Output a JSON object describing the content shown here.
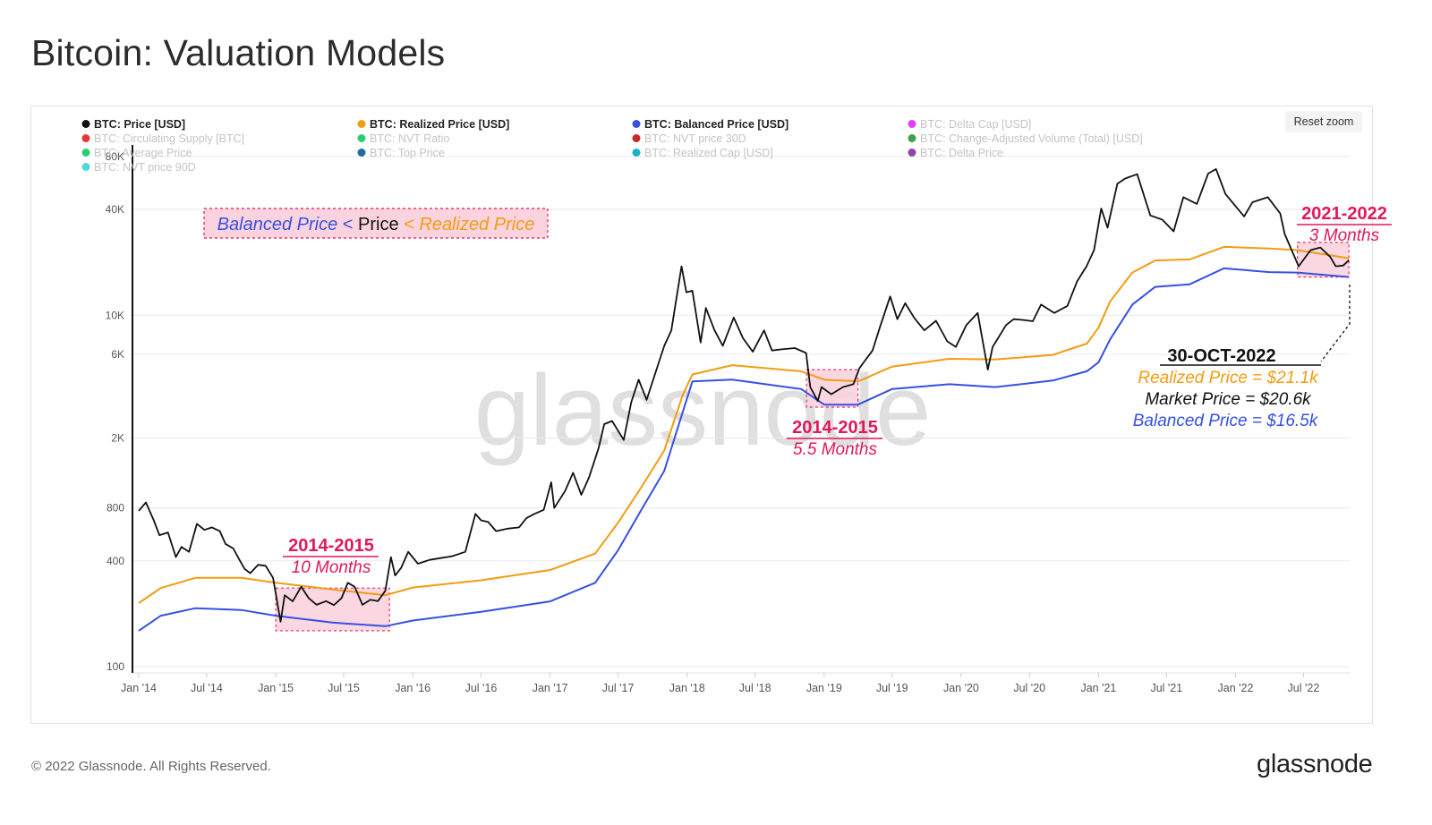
{
  "page": {
    "title": "Bitcoin: Valuation Models",
    "reset_zoom_label": "Reset zoom",
    "footer": "© 2022 Glassnode. All Rights Reserved.",
    "brand": "glassnode",
    "watermark": "glassnode"
  },
  "legend": [
    {
      "label": "BTC: Price [USD]",
      "color": "#111111",
      "active": true
    },
    {
      "label": "BTC: Realized Price [USD]",
      "color": "#f29c12",
      "active": true
    },
    {
      "label": "BTC: Balanced Price [USD]",
      "color": "#3650e0",
      "active": true
    },
    {
      "label": "BTC: Delta Cap [USD]",
      "color": "#e040fb",
      "active": false
    },
    {
      "label": "BTC: Circulating Supply [BTC]",
      "color": "#e53935",
      "active": false
    },
    {
      "label": "BTC: NVT Ratio",
      "color": "#2ecc71",
      "active": false
    },
    {
      "label": "BTC: NVT price 30D",
      "color": "#c62828",
      "active": false
    },
    {
      "label": "BTC: Change-Adjusted Volume (Total) [USD]",
      "color": "#43a047",
      "active": false
    },
    {
      "label": "BTC: Average Price",
      "color": "#2ecc71",
      "active": false
    },
    {
      "label": "BTC: Top Price",
      "color": "#1e6aa8",
      "active": false
    },
    {
      "label": "BTC: Realized Cap [USD]",
      "color": "#16b5c6",
      "active": false
    },
    {
      "label": "BTC: Delta Price",
      "color": "#8e44ad",
      "active": false
    },
    {
      "label": "BTC: NVT price 90D",
      "color": "#4dd9d9",
      "active": false
    }
  ],
  "annotations": {
    "formula": {
      "part1": "Balanced Price",
      "part2": " < ",
      "part3": "Price",
      "part4": " < Realized Price"
    },
    "period1": {
      "title": "2014-2015",
      "subtitle": "10 Months"
    },
    "period2": {
      "title": "2014-2015",
      "subtitle": "5.5 Months"
    },
    "period3": {
      "title": "2021-2022",
      "subtitle": "3 Months"
    },
    "callout": {
      "date": "30-OCT-2022",
      "realized": "Realized Price = $21.1k",
      "market": "Market Price = $20.6k",
      "balanced": "Balanced Price = $16.5k"
    }
  },
  "colors": {
    "price": "#111111",
    "realized": "#f29c12",
    "balanced": "#3650e0",
    "highlight": "#e0195a",
    "highlight_fill": "#fbd3de",
    "grid": "#e9e9e9",
    "axis_text": "#555555"
  },
  "chart_data": {
    "type": "line",
    "y_scale": "log",
    "ylim": [
      100,
      80000
    ],
    "x_range": [
      "2014-01-01",
      "2022-11-01"
    ],
    "y_ticks": [
      {
        "value": 100,
        "label": "100"
      },
      {
        "value": 400,
        "label": "400"
      },
      {
        "value": 800,
        "label": "800"
      },
      {
        "value": 2000,
        "label": "2K"
      },
      {
        "value": 6000,
        "label": "6K"
      },
      {
        "value": 10000,
        "label": "10K"
      },
      {
        "value": 40000,
        "label": "40K"
      },
      {
        "value": 80000,
        "label": "80K"
      }
    ],
    "x_ticks": [
      {
        "date": "2014-01-01",
        "label": "Jan '14"
      },
      {
        "date": "2014-07-01",
        "label": "Jul '14"
      },
      {
        "date": "2015-01-01",
        "label": "Jan '15"
      },
      {
        "date": "2015-07-01",
        "label": "Jul '15"
      },
      {
        "date": "2016-01-01",
        "label": "Jan '16"
      },
      {
        "date": "2016-07-01",
        "label": "Jul '16"
      },
      {
        "date": "2017-01-01",
        "label": "Jan '17"
      },
      {
        "date": "2017-07-01",
        "label": "Jul '17"
      },
      {
        "date": "2018-01-01",
        "label": "Jan '18"
      },
      {
        "date": "2018-07-01",
        "label": "Jul '18"
      },
      {
        "date": "2019-01-01",
        "label": "Jan '19"
      },
      {
        "date": "2019-07-01",
        "label": "Jul '19"
      },
      {
        "date": "2020-01-01",
        "label": "Jan '20"
      },
      {
        "date": "2020-07-01",
        "label": "Jul '20"
      },
      {
        "date": "2021-01-01",
        "label": "Jan '21"
      },
      {
        "date": "2021-07-01",
        "label": "Jul '21"
      },
      {
        "date": "2022-01-01",
        "label": "Jan '22"
      },
      {
        "date": "2022-07-01",
        "label": "Jul '22"
      }
    ],
    "highlight_ranges": [
      {
        "start": "2015-01-01",
        "end": "2015-10-31",
        "low": 160,
        "high": 280
      },
      {
        "start": "2018-11-15",
        "end": "2019-04-01",
        "low": 3000,
        "high": 4900
      },
      {
        "start": "2022-06-15",
        "end": "2022-10-30",
        "low": 16500,
        "high": 26000
      }
    ],
    "series": [
      {
        "name": "BTC: Price [USD]",
        "points": [
          [
            "2014-01-01",
            770
          ],
          [
            "2014-01-20",
            860
          ],
          [
            "2014-02-10",
            680
          ],
          [
            "2014-02-25",
            560
          ],
          [
            "2014-03-20",
            580
          ],
          [
            "2014-04-10",
            420
          ],
          [
            "2014-04-25",
            480
          ],
          [
            "2014-05-15",
            450
          ],
          [
            "2014-06-05",
            650
          ],
          [
            "2014-06-25",
            600
          ],
          [
            "2014-07-15",
            620
          ],
          [
            "2014-08-05",
            590
          ],
          [
            "2014-08-20",
            500
          ],
          [
            "2014-09-10",
            470
          ],
          [
            "2014-09-25",
            410
          ],
          [
            "2014-10-10",
            360
          ],
          [
            "2014-10-25",
            340
          ],
          [
            "2014-11-15",
            380
          ],
          [
            "2014-12-05",
            375
          ],
          [
            "2014-12-25",
            320
          ],
          [
            "2015-01-14",
            180
          ],
          [
            "2015-01-25",
            255
          ],
          [
            "2015-02-15",
            235
          ],
          [
            "2015-03-10",
            285
          ],
          [
            "2015-03-30",
            245
          ],
          [
            "2015-04-20",
            225
          ],
          [
            "2015-05-15",
            236
          ],
          [
            "2015-06-05",
            224
          ],
          [
            "2015-06-25",
            245
          ],
          [
            "2015-07-12",
            300
          ],
          [
            "2015-07-30",
            285
          ],
          [
            "2015-08-20",
            225
          ],
          [
            "2015-09-10",
            240
          ],
          [
            "2015-09-30",
            236
          ],
          [
            "2015-10-20",
            270
          ],
          [
            "2015-11-04",
            420
          ],
          [
            "2015-11-15",
            330
          ],
          [
            "2015-12-01",
            365
          ],
          [
            "2015-12-20",
            450
          ],
          [
            "2016-01-15",
            385
          ],
          [
            "2016-02-15",
            405
          ],
          [
            "2016-03-15",
            415
          ],
          [
            "2016-04-15",
            425
          ],
          [
            "2016-05-20",
            450
          ],
          [
            "2016-06-16",
            740
          ],
          [
            "2016-07-01",
            680
          ],
          [
            "2016-07-20",
            665
          ],
          [
            "2016-08-10",
            590
          ],
          [
            "2016-09-10",
            610
          ],
          [
            "2016-10-10",
            620
          ],
          [
            "2016-10-30",
            700
          ],
          [
            "2016-11-20",
            740
          ],
          [
            "2016-12-15",
            780
          ],
          [
            "2017-01-04",
            1120
          ],
          [
            "2017-01-12",
            800
          ],
          [
            "2017-02-10",
            1000
          ],
          [
            "2017-03-03",
            1270
          ],
          [
            "2017-03-25",
            950
          ],
          [
            "2017-04-15",
            1200
          ],
          [
            "2017-05-10",
            1750
          ],
          [
            "2017-05-25",
            2400
          ],
          [
            "2017-06-15",
            2500
          ],
          [
            "2017-07-16",
            1950
          ],
          [
            "2017-08-05",
            3200
          ],
          [
            "2017-08-25",
            4300
          ],
          [
            "2017-09-15",
            3300
          ],
          [
            "2017-10-10",
            4800
          ],
          [
            "2017-11-01",
            6700
          ],
          [
            "2017-11-20",
            8200
          ],
          [
            "2017-12-17",
            19000
          ],
          [
            "2017-12-30",
            13500
          ],
          [
            "2018-01-15",
            13800
          ],
          [
            "2018-02-06",
            7000
          ],
          [
            "2018-02-20",
            11000
          ],
          [
            "2018-03-15",
            8200
          ],
          [
            "2018-04-06",
            6700
          ],
          [
            "2018-05-05",
            9700
          ],
          [
            "2018-05-30",
            7400
          ],
          [
            "2018-06-25",
            6200
          ],
          [
            "2018-07-25",
            8200
          ],
          [
            "2018-08-15",
            6300
          ],
          [
            "2018-09-10",
            6400
          ],
          [
            "2018-10-15",
            6500
          ],
          [
            "2018-11-14",
            6100
          ],
          [
            "2018-11-25",
            3900
          ],
          [
            "2018-12-15",
            3250
          ],
          [
            "2018-12-25",
            3900
          ],
          [
            "2019-01-20",
            3550
          ],
          [
            "2019-02-20",
            3900
          ],
          [
            "2019-03-20",
            4050
          ],
          [
            "2019-04-05",
            5000
          ],
          [
            "2019-05-10",
            6300
          ],
          [
            "2019-05-30",
            8600
          ],
          [
            "2019-06-26",
            12800
          ],
          [
            "2019-07-15",
            9500
          ],
          [
            "2019-08-05",
            11700
          ],
          [
            "2019-08-30",
            9600
          ],
          [
            "2019-09-25",
            8200
          ],
          [
            "2019-10-26",
            9300
          ],
          [
            "2019-11-25",
            7100
          ],
          [
            "2019-12-18",
            6600
          ],
          [
            "2020-01-15",
            8800
          ],
          [
            "2020-02-14",
            10300
          ],
          [
            "2020-03-12",
            4900
          ],
          [
            "2020-03-25",
            6600
          ],
          [
            "2020-04-30",
            8800
          ],
          [
            "2020-05-20",
            9500
          ],
          [
            "2020-06-15",
            9400
          ],
          [
            "2020-07-10",
            9250
          ],
          [
            "2020-08-01",
            11500
          ],
          [
            "2020-09-05",
            10300
          ],
          [
            "2020-10-10",
            11300
          ],
          [
            "2020-11-05",
            15600
          ],
          [
            "2020-11-30",
            19000
          ],
          [
            "2020-12-20",
            23500
          ],
          [
            "2021-01-08",
            40500
          ],
          [
            "2021-01-25",
            31500
          ],
          [
            "2021-02-20",
            56000
          ],
          [
            "2021-03-13",
            60000
          ],
          [
            "2021-04-14",
            63500
          ],
          [
            "2021-05-19",
            37000
          ],
          [
            "2021-06-20",
            35000
          ],
          [
            "2021-07-20",
            30000
          ],
          [
            "2021-08-15",
            47000
          ],
          [
            "2021-09-20",
            43000
          ],
          [
            "2021-10-20",
            64000
          ],
          [
            "2021-11-10",
            68000
          ],
          [
            "2021-12-05",
            49000
          ],
          [
            "2022-01-24",
            36500
          ],
          [
            "2022-02-15",
            44000
          ],
          [
            "2022-03-28",
            47000
          ],
          [
            "2022-04-30",
            38000
          ],
          [
            "2022-05-12",
            29000
          ],
          [
            "2022-06-18",
            19000
          ],
          [
            "2022-07-20",
            23500
          ],
          [
            "2022-08-15",
            24300
          ],
          [
            "2022-09-10",
            21500
          ],
          [
            "2022-09-25",
            19000
          ],
          [
            "2022-10-15",
            19200
          ],
          [
            "2022-10-30",
            20600
          ]
        ]
      },
      {
        "name": "BTC: Realized Price [USD]",
        "points": [
          [
            "2014-01-01",
            230
          ],
          [
            "2014-03-01",
            280
          ],
          [
            "2014-06-01",
            320
          ],
          [
            "2014-10-01",
            320
          ],
          [
            "2015-01-01",
            300
          ],
          [
            "2015-06-01",
            275
          ],
          [
            "2015-10-20",
            255
          ],
          [
            "2016-01-01",
            282
          ],
          [
            "2016-07-01",
            310
          ],
          [
            "2017-01-01",
            355
          ],
          [
            "2017-05-01",
            440
          ],
          [
            "2017-07-01",
            660
          ],
          [
            "2017-09-01",
            1050
          ],
          [
            "2017-11-01",
            1700
          ],
          [
            "2017-12-20",
            3500
          ],
          [
            "2018-01-15",
            4600
          ],
          [
            "2018-05-01",
            5200
          ],
          [
            "2018-11-01",
            4800
          ],
          [
            "2019-01-01",
            4300
          ],
          [
            "2019-04-01",
            4200
          ],
          [
            "2019-07-01",
            5100
          ],
          [
            "2019-12-01",
            5650
          ],
          [
            "2020-04-01",
            5600
          ],
          [
            "2020-09-01",
            5950
          ],
          [
            "2020-12-01",
            6900
          ],
          [
            "2021-01-01",
            8500
          ],
          [
            "2021-02-01",
            12000
          ],
          [
            "2021-04-01",
            17500
          ],
          [
            "2021-06-01",
            20500
          ],
          [
            "2021-09-01",
            20800
          ],
          [
            "2021-12-01",
            24500
          ],
          [
            "2022-04-01",
            24000
          ],
          [
            "2022-06-15",
            23500
          ],
          [
            "2022-10-30",
            21100
          ]
        ]
      },
      {
        "name": "BTC: Balanced Price [USD]",
        "points": [
          [
            "2014-01-01",
            160
          ],
          [
            "2014-03-01",
            195
          ],
          [
            "2014-06-01",
            215
          ],
          [
            "2014-10-01",
            210
          ],
          [
            "2015-01-01",
            195
          ],
          [
            "2015-06-01",
            178
          ],
          [
            "2015-10-20",
            170
          ],
          [
            "2016-01-01",
            183
          ],
          [
            "2016-07-01",
            205
          ],
          [
            "2017-01-01",
            235
          ],
          [
            "2017-05-01",
            300
          ],
          [
            "2017-07-01",
            460
          ],
          [
            "2017-09-01",
            780
          ],
          [
            "2017-11-01",
            1300
          ],
          [
            "2017-12-20",
            2800
          ],
          [
            "2018-01-15",
            4200
          ],
          [
            "2018-05-01",
            4300
          ],
          [
            "2018-11-01",
            3800
          ],
          [
            "2019-01-01",
            3100
          ],
          [
            "2019-04-01",
            3100
          ],
          [
            "2019-07-01",
            3800
          ],
          [
            "2019-12-01",
            4050
          ],
          [
            "2020-04-01",
            3900
          ],
          [
            "2020-09-01",
            4250
          ],
          [
            "2020-12-01",
            4800
          ],
          [
            "2021-01-01",
            5400
          ],
          [
            "2021-02-01",
            7300
          ],
          [
            "2021-04-01",
            11500
          ],
          [
            "2021-06-01",
            14500
          ],
          [
            "2021-09-01",
            15000
          ],
          [
            "2021-12-01",
            18500
          ],
          [
            "2022-04-01",
            17600
          ],
          [
            "2022-06-15",
            17500
          ],
          [
            "2022-10-30",
            16500
          ]
        ]
      }
    ]
  }
}
